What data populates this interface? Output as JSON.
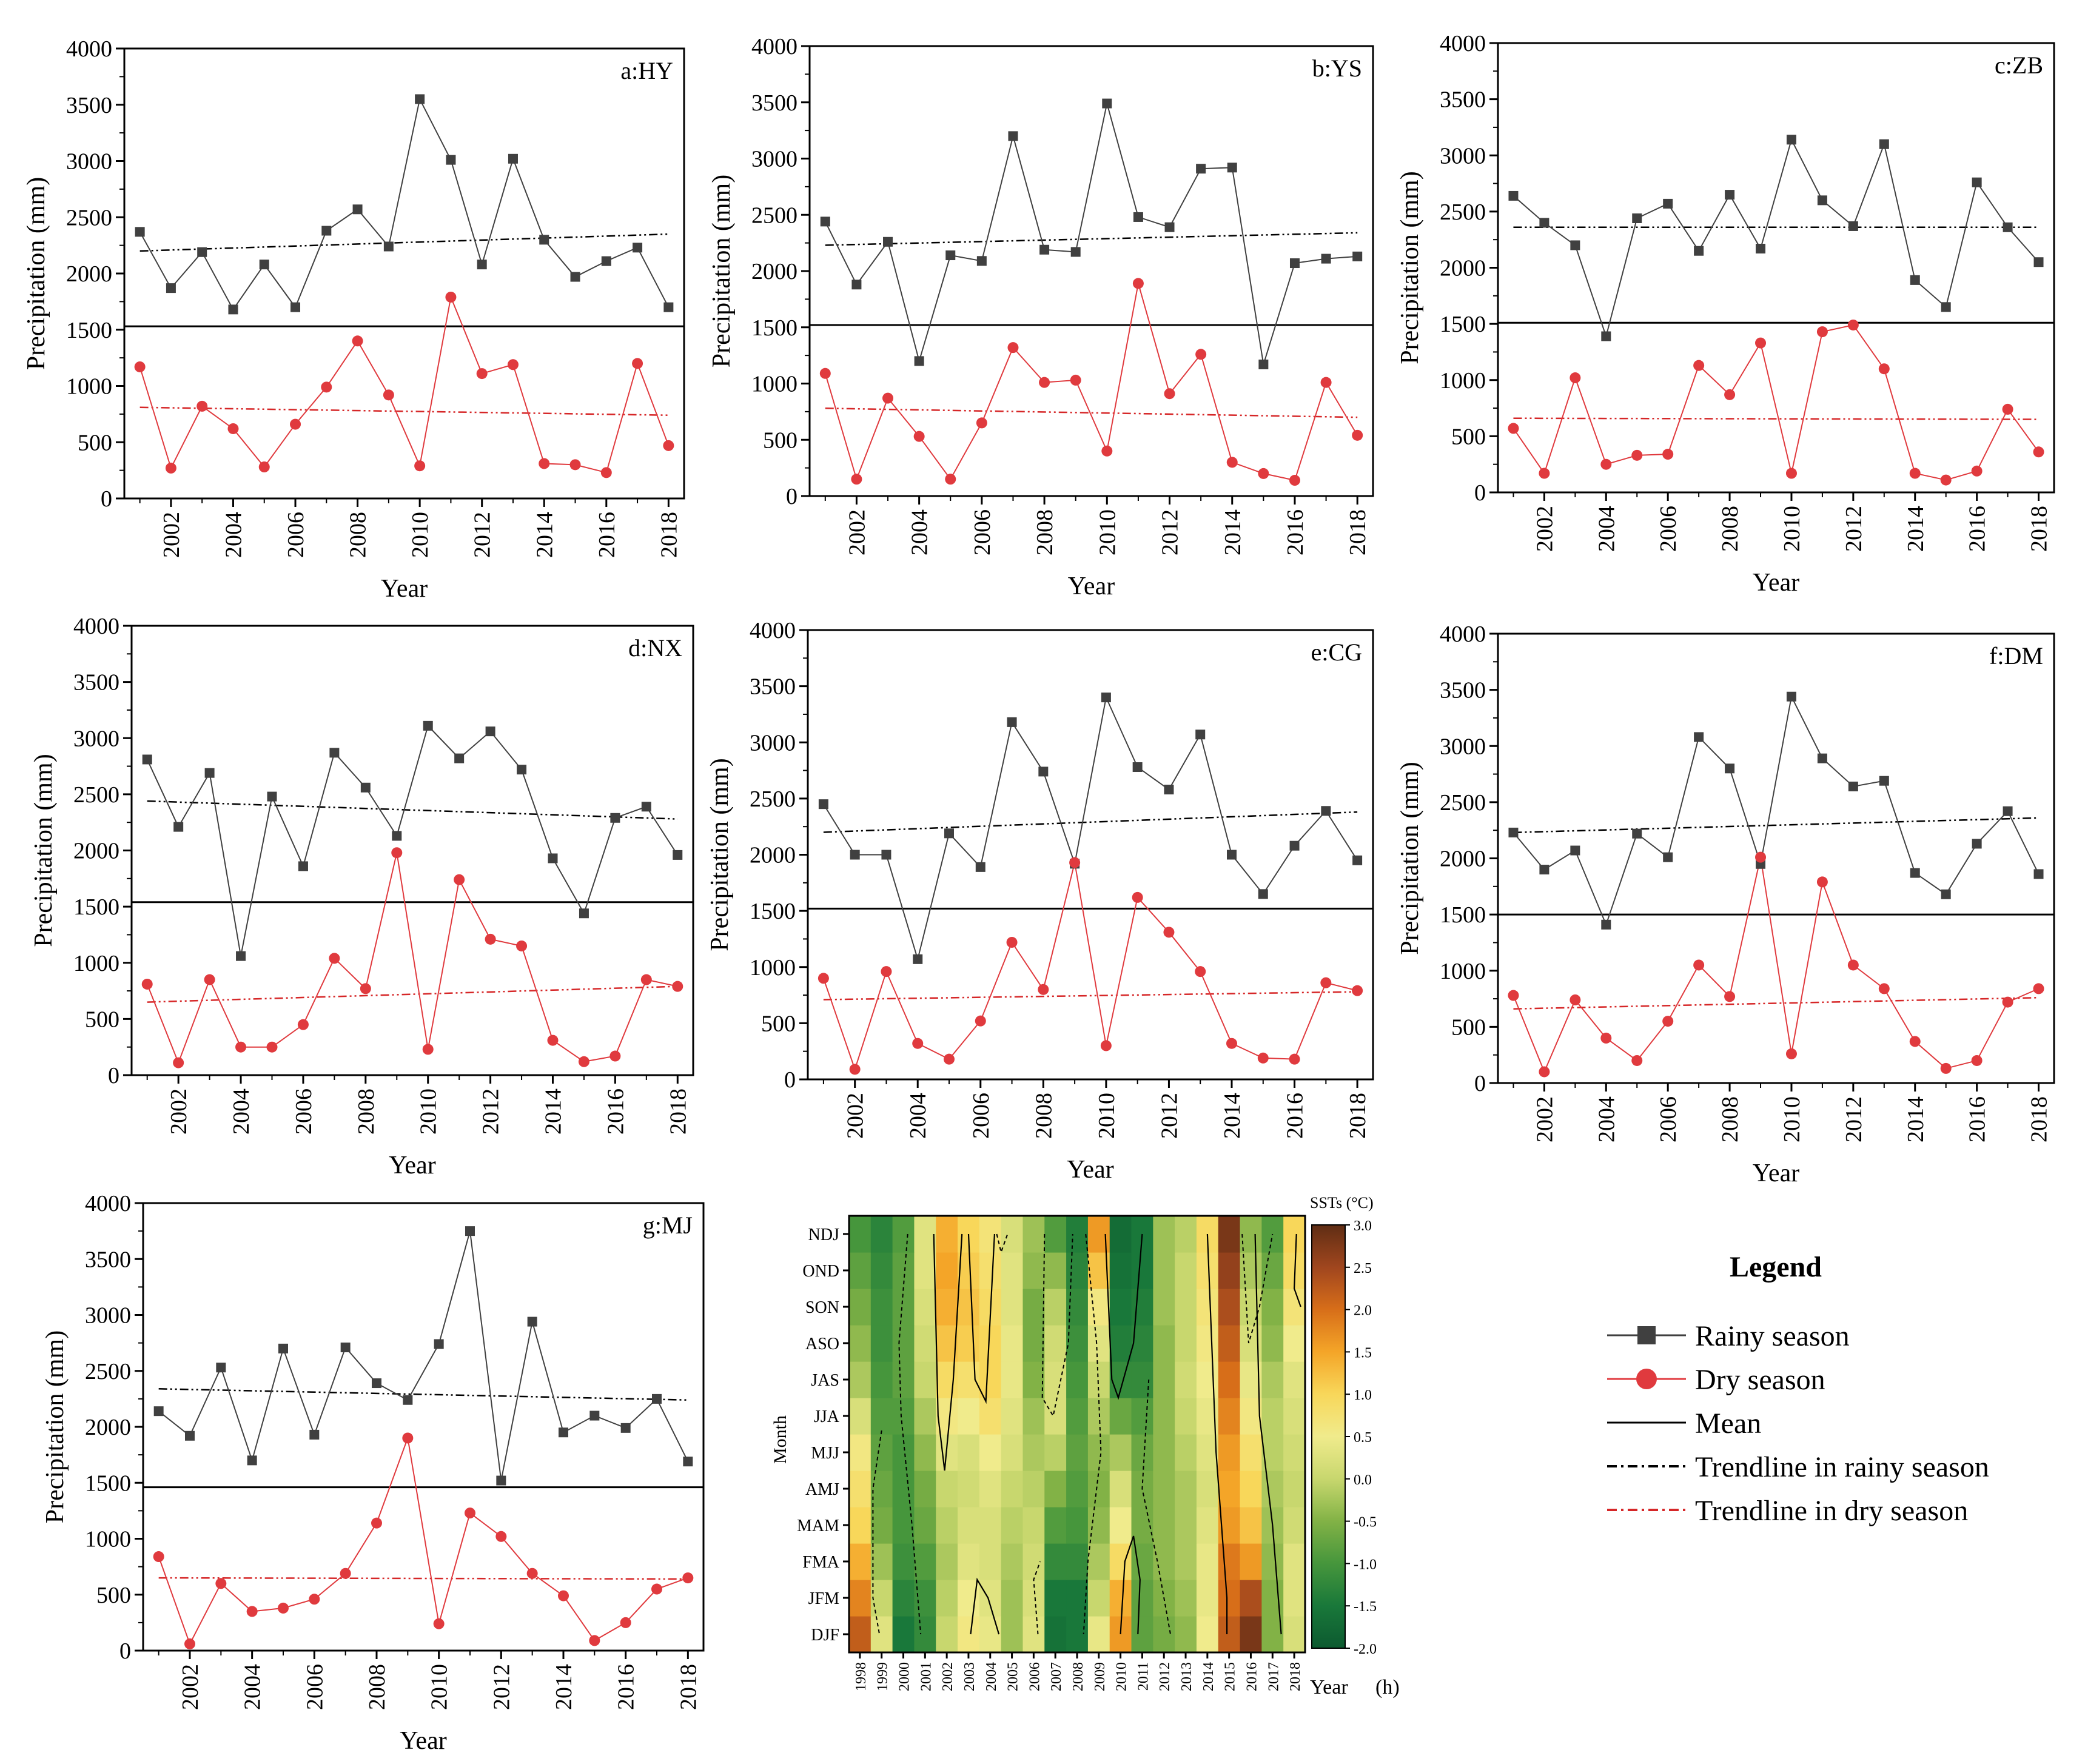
{
  "figure": {
    "colors": {
      "rainy": "#404040",
      "dry": "#e03a3e",
      "mean": "#000000",
      "trend_rainy": "#000000",
      "trend_dry": "#d62728"
    }
  },
  "chart_data": [
    {
      "type": "line",
      "title": "a:HY",
      "xlabel": "Year",
      "ylabel": "Precipitation (mm)",
      "ylim": [
        0,
        4000
      ],
      "yticks": [
        0,
        500,
        1000,
        1500,
        2000,
        2500,
        3000,
        3500,
        4000
      ],
      "x": [
        2001,
        2002,
        2003,
        2004,
        2005,
        2006,
        2007,
        2008,
        2009,
        2010,
        2011,
        2012,
        2013,
        2014,
        2015,
        2016,
        2017,
        2018
      ],
      "xticks": [
        "2002",
        "2004",
        "2006",
        "2008",
        "2010",
        "2012",
        "2014",
        "2016",
        "2018"
      ],
      "series": [
        {
          "name": "Rainy season",
          "values": [
            2370,
            1870,
            2190,
            1680,
            2080,
            1700,
            2380,
            2570,
            2240,
            3550,
            3010,
            2080,
            3020,
            2300,
            1970,
            2110,
            2230,
            1700
          ]
        },
        {
          "name": "Dry season",
          "values": [
            1170,
            270,
            820,
            620,
            280,
            660,
            990,
            1400,
            920,
            290,
            1790,
            1110,
            1190,
            310,
            300,
            230,
            1200,
            470
          ]
        }
      ],
      "mean": 1530,
      "trend_rainy": [
        2200,
        2350
      ],
      "trend_dry": [
        810,
        740
      ]
    },
    {
      "type": "line",
      "title": "b:YS",
      "xlabel": "Year",
      "ylabel": "Precipitation (mm)",
      "ylim": [
        0,
        4000
      ],
      "yticks": [
        0,
        500,
        1000,
        1500,
        2000,
        2500,
        3000,
        3500,
        4000
      ],
      "x": [
        2001,
        2002,
        2003,
        2004,
        2005,
        2006,
        2007,
        2008,
        2009,
        2010,
        2011,
        2012,
        2013,
        2014,
        2015,
        2016,
        2017,
        2018
      ],
      "xticks": [
        "2002",
        "2004",
        "2006",
        "2008",
        "2010",
        "2012",
        "2014",
        "2016",
        "2018"
      ],
      "series": [
        {
          "name": "Rainy season",
          "values": [
            2440,
            1880,
            2260,
            1200,
            2140,
            2090,
            3200,
            2190,
            2170,
            3490,
            2480,
            2390,
            2910,
            2920,
            1170,
            2070,
            2110,
            2130
          ]
        },
        {
          "name": "Dry season",
          "values": [
            1090,
            150,
            870,
            530,
            150,
            650,
            1320,
            1010,
            1030,
            400,
            1890,
            910,
            1260,
            300,
            200,
            140,
            1010,
            540
          ]
        }
      ],
      "mean": 1520,
      "trend_rainy": [
        2230,
        2340
      ],
      "trend_dry": [
        780,
        700
      ]
    },
    {
      "type": "line",
      "title": "c:ZB",
      "xlabel": "Year",
      "ylabel": "Precipitation (mm)",
      "ylim": [
        0,
        4000
      ],
      "yticks": [
        0,
        500,
        1000,
        1500,
        2000,
        2500,
        3000,
        3500,
        4000
      ],
      "x": [
        2001,
        2002,
        2003,
        2004,
        2005,
        2006,
        2007,
        2008,
        2009,
        2010,
        2011,
        2012,
        2013,
        2014,
        2015,
        2016,
        2017,
        2018
      ],
      "xticks": [
        "2002",
        "2004",
        "2006",
        "2008",
        "2010",
        "2012",
        "2014",
        "2016",
        "2018"
      ],
      "series": [
        {
          "name": "Rainy season",
          "values": [
            2640,
            2400,
            2200,
            1390,
            2440,
            2570,
            2150,
            2650,
            2170,
            3140,
            2600,
            2370,
            3100,
            1890,
            1650,
            2760,
            2360,
            2050
          ]
        },
        {
          "name": "Dry season",
          "values": [
            570,
            170,
            1020,
            250,
            330,
            340,
            1130,
            870,
            1330,
            170,
            1430,
            1490,
            1100,
            170,
            110,
            190,
            740,
            360
          ]
        }
      ],
      "mean": 1510,
      "trend_rainy": [
        2360,
        2360
      ],
      "trend_dry": [
        660,
        650
      ]
    },
    {
      "type": "line",
      "title": "d:NX",
      "xlabel": "Year",
      "ylabel": "Precipitation (mm)",
      "ylim": [
        0,
        4000
      ],
      "yticks": [
        0,
        500,
        1000,
        1500,
        2000,
        2500,
        3000,
        3500,
        4000
      ],
      "x": [
        2001,
        2002,
        2003,
        2004,
        2005,
        2006,
        2007,
        2008,
        2009,
        2010,
        2011,
        2012,
        2013,
        2014,
        2015,
        2016,
        2017,
        2018
      ],
      "xticks": [
        "2002",
        "2004",
        "2006",
        "2008",
        "2010",
        "2012",
        "2014",
        "2016",
        "2018"
      ],
      "series": [
        {
          "name": "Rainy season",
          "values": [
            2810,
            2210,
            2690,
            1060,
            2480,
            1860,
            2870,
            2560,
            2130,
            3110,
            2820,
            3060,
            2720,
            1930,
            1440,
            2290,
            2390,
            1960
          ]
        },
        {
          "name": "Dry season",
          "values": [
            810,
            110,
            850,
            250,
            250,
            450,
            1040,
            770,
            1980,
            230,
            1740,
            1210,
            1150,
            310,
            120,
            170,
            850,
            790
          ]
        }
      ],
      "mean": 1540,
      "trend_rainy": [
        2440,
        2280
      ],
      "trend_dry": [
        650,
        790
      ]
    },
    {
      "type": "line",
      "title": "e:CG",
      "xlabel": "Year",
      "ylabel": "Precipitation (mm)",
      "ylim": [
        0,
        4000
      ],
      "yticks": [
        0,
        500,
        1000,
        1500,
        2000,
        2500,
        3000,
        3500,
        4000
      ],
      "x": [
        2001,
        2002,
        2003,
        2004,
        2005,
        2006,
        2007,
        2008,
        2009,
        2010,
        2011,
        2012,
        2013,
        2014,
        2015,
        2016,
        2017,
        2018
      ],
      "xticks": [
        "2002",
        "2004",
        "2006",
        "2008",
        "2010",
        "2012",
        "2014",
        "2016",
        "2018"
      ],
      "series": [
        {
          "name": "Rainy season",
          "values": [
            2450,
            2000,
            2000,
            1070,
            2190,
            1890,
            3180,
            2740,
            1920,
            3400,
            2780,
            2580,
            3070,
            2000,
            1650,
            2080,
            2390,
            1950
          ]
        },
        {
          "name": "Dry season",
          "values": [
            900,
            90,
            960,
            320,
            180,
            520,
            1220,
            800,
            1930,
            300,
            1620,
            1310,
            960,
            320,
            190,
            180,
            860,
            790
          ]
        }
      ],
      "mean": 1520,
      "trend_rainy": [
        2200,
        2380
      ],
      "trend_dry": [
        710,
        780
      ]
    },
    {
      "type": "line",
      "title": "f:DM",
      "xlabel": "Year",
      "ylabel": "Precipitation (mm)",
      "ylim": [
        0,
        4000
      ],
      "yticks": [
        0,
        500,
        1000,
        1500,
        2000,
        2500,
        3000,
        3500,
        4000
      ],
      "x": [
        2001,
        2002,
        2003,
        2004,
        2005,
        2006,
        2007,
        2008,
        2009,
        2010,
        2011,
        2012,
        2013,
        2014,
        2015,
        2016,
        2017,
        2018
      ],
      "xticks": [
        "2002",
        "2004",
        "2006",
        "2008",
        "2010",
        "2012",
        "2014",
        "2016",
        "2018"
      ],
      "series": [
        {
          "name": "Rainy season",
          "values": [
            2230,
            1900,
            2070,
            1410,
            2220,
            2010,
            3080,
            2800,
            1950,
            3440,
            2890,
            2640,
            2690,
            1870,
            1680,
            2130,
            2420,
            1860
          ]
        },
        {
          "name": "Dry season",
          "values": [
            780,
            100,
            740,
            400,
            200,
            550,
            1050,
            770,
            2010,
            260,
            1790,
            1050,
            840,
            370,
            130,
            200,
            720,
            840
          ]
        }
      ],
      "mean": 1500,
      "trend_rainy": [
        2230,
        2360
      ],
      "trend_dry": [
        660,
        760
      ]
    },
    {
      "type": "line",
      "title": "g:MJ",
      "xlabel": "Year",
      "ylabel": "Precipitation (mm)",
      "ylim": [
        0,
        4000
      ],
      "yticks": [
        0,
        500,
        1000,
        1500,
        2000,
        2500,
        3000,
        3500,
        4000
      ],
      "x": [
        2001,
        2002,
        2003,
        2004,
        2005,
        2006,
        2007,
        2008,
        2009,
        2010,
        2011,
        2012,
        2013,
        2014,
        2015,
        2016,
        2017,
        2018
      ],
      "xticks": [
        "2002",
        "2004",
        "2006",
        "2008",
        "2010",
        "2012",
        "2014",
        "2016",
        "2018"
      ],
      "series": [
        {
          "name": "Rainy season",
          "values": [
            2140,
            1920,
            2530,
            1700,
            2700,
            1930,
            2710,
            2390,
            2240,
            2740,
            3750,
            1520,
            2940,
            1950,
            2100,
            1990,
            2250,
            1690
          ]
        },
        {
          "name": "Dry season",
          "values": [
            840,
            60,
            600,
            350,
            380,
            460,
            690,
            1140,
            1900,
            240,
            1230,
            1020,
            690,
            490,
            90,
            250,
            550,
            650
          ]
        }
      ],
      "mean": 1460,
      "trend_rainy": [
        2340,
        2240
      ],
      "trend_dry": [
        650,
        640
      ]
    },
    {
      "type": "heatmap",
      "xlabel": "Year",
      "ylabel": "Month",
      "xunit": "(h)",
      "x": [
        "1998",
        "1999",
        "2000",
        "2001",
        "2002",
        "2003",
        "2004",
        "2005",
        "2006",
        "2007",
        "2008",
        "2009",
        "2010",
        "2011",
        "2012",
        "2013",
        "2014",
        "2015",
        "2016",
        "2017",
        "2018"
      ],
      "y": [
        "DJF",
        "JFM",
        "FMA",
        "MAM",
        "AMJ",
        "MJJ",
        "JJA",
        "JAS",
        "ASO",
        "SON",
        "OND",
        "NDJ"
      ],
      "values": [
        [
          2.2,
          0.3,
          -1.5,
          -1.2,
          0.0,
          0.6,
          0.4,
          -0.3,
          0.3,
          -1.6,
          -1.5,
          0.4,
          1.6,
          -0.8,
          -0.6,
          -0.4,
          0.5,
          2.2,
          2.8,
          -0.5,
          0.2
        ],
        [
          1.8,
          0.0,
          -1.3,
          -1.1,
          -0.1,
          0.5,
          0.3,
          -0.3,
          0.2,
          -1.5,
          -1.5,
          0.0,
          1.4,
          -0.8,
          -0.5,
          -0.3,
          0.4,
          2.0,
          2.4,
          -0.5,
          0.3
        ],
        [
          1.4,
          -0.3,
          -1.1,
          -0.9,
          -0.2,
          0.3,
          0.2,
          -0.2,
          0.1,
          -1.2,
          -1.2,
          -0.2,
          0.9,
          -0.7,
          -0.4,
          -0.2,
          0.4,
          1.9,
          1.6,
          -0.4,
          0.3
        ],
        [
          1.0,
          -0.6,
          -1.0,
          -0.7,
          -0.1,
          0.2,
          0.2,
          -0.1,
          0.0,
          -0.9,
          -1.0,
          -0.4,
          0.5,
          -0.6,
          -0.4,
          -0.2,
          0.3,
          1.6,
          1.2,
          -0.3,
          0.1
        ],
        [
          0.8,
          -0.7,
          -1.0,
          -0.6,
          0.0,
          0.1,
          0.3,
          0.0,
          -0.1,
          -0.5,
          -0.9,
          -0.5,
          0.2,
          -0.6,
          -0.4,
          -0.2,
          0.2,
          1.5,
          1.0,
          -0.2,
          0.0
        ],
        [
          0.6,
          -0.8,
          -1.0,
          -0.4,
          0.3,
          0.2,
          0.5,
          0.2,
          -0.2,
          -0.1,
          -0.8,
          -0.4,
          -0.2,
          -0.7,
          -0.4,
          -0.1,
          0.3,
          1.6,
          0.8,
          -0.1,
          0.1
        ],
        [
          0.2,
          -0.9,
          -0.9,
          -0.2,
          0.6,
          0.5,
          0.8,
          0.3,
          -0.3,
          0.2,
          -0.9,
          -0.2,
          -0.7,
          -0.9,
          -0.4,
          0.0,
          0.4,
          1.8,
          0.6,
          -0.1,
          0.2
        ],
        [
          -0.2,
          -1.0,
          -0.8,
          0.0,
          0.9,
          0.8,
          1.0,
          0.4,
          -0.5,
          0.2,
          -1.0,
          0.0,
          -1.2,
          -1.2,
          -0.4,
          0.1,
          0.5,
          2.0,
          0.4,
          -0.2,
          0.3
        ],
        [
          -0.4,
          -1.1,
          -0.8,
          0.1,
          1.2,
          1.1,
          1.0,
          0.4,
          -0.6,
          0.1,
          -1.1,
          0.3,
          -1.4,
          -1.3,
          -0.4,
          0.0,
          0.6,
          2.2,
          0.2,
          -0.4,
          0.5
        ],
        [
          -0.6,
          -1.1,
          -0.8,
          0.2,
          1.4,
          1.2,
          0.9,
          0.3,
          -0.6,
          -0.1,
          -1.2,
          0.6,
          -1.5,
          -1.4,
          -0.3,
          0.0,
          0.7,
          2.4,
          0.0,
          -0.5,
          0.7
        ],
        [
          -0.8,
          -1.2,
          -0.8,
          0.3,
          1.5,
          1.1,
          0.8,
          0.3,
          -0.4,
          -0.4,
          -1.3,
          1.2,
          -1.6,
          -1.5,
          -0.3,
          0.0,
          0.8,
          2.6,
          -0.2,
          -0.7,
          0.9
        ],
        [
          -1.0,
          -1.3,
          -0.9,
          0.3,
          1.4,
          1.0,
          0.7,
          0.2,
          -0.3,
          -0.9,
          -1.4,
          1.6,
          -1.7,
          -1.5,
          -0.3,
          -0.1,
          0.9,
          2.8,
          -0.4,
          -0.9,
          1.0
        ]
      ],
      "colorbar": {
        "title": "SSTs (°C)",
        "ticks": [
          "3.0",
          "2.5",
          "2.0",
          "1.5",
          "1.0",
          "0.5",
          "0.0",
          "-0.5",
          "-1.0",
          "-1.5",
          "-2.0"
        ],
        "range": [
          -2.0,
          3.0
        ]
      }
    }
  ],
  "legend": {
    "title": "Legend",
    "items": [
      {
        "label": "Rainy season",
        "kind": "rainy"
      },
      {
        "label": "Dry season",
        "kind": "dry"
      },
      {
        "label": "Mean",
        "kind": "mean"
      },
      {
        "label": "Trendline in rainy season",
        "kind": "trend_rainy"
      },
      {
        "label": "Trendline in dry season",
        "kind": "trend_dry"
      }
    ]
  }
}
